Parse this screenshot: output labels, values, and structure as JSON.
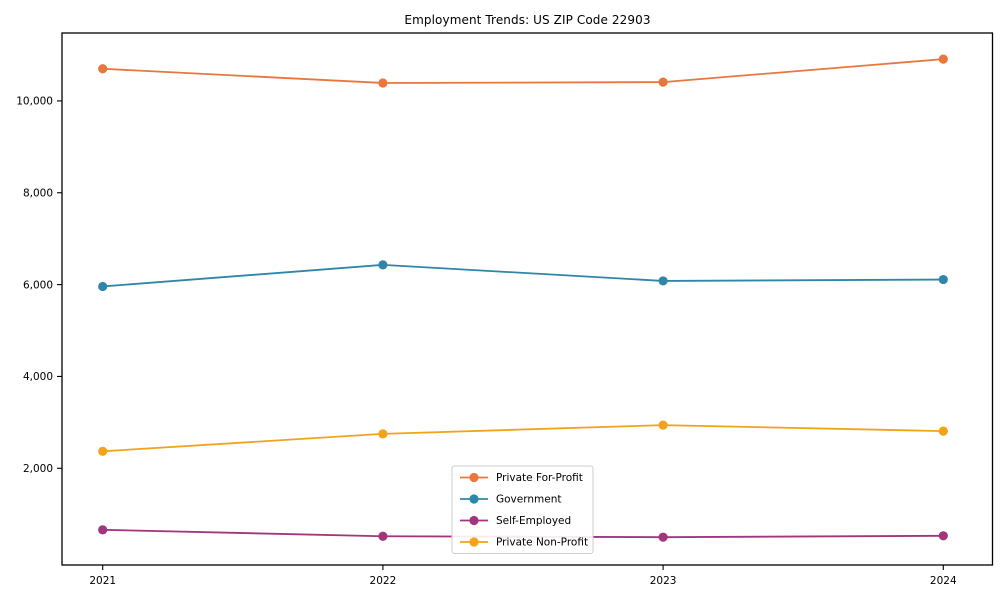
{
  "chart_data": {
    "type": "line",
    "title": "Employment Trends: US ZIP Code 22903",
    "categories": [
      "2021",
      "2022",
      "2023",
      "2024"
    ],
    "series": [
      {
        "name": "Private For-Profit",
        "color": "#e8763d",
        "values": [
          10700,
          10390,
          10410,
          10910
        ]
      },
      {
        "name": "Government",
        "color": "#2e87a8",
        "values": [
          5960,
          6430,
          6080,
          6110
        ]
      },
      {
        "name": "Self-Employed",
        "color": "#a2357c",
        "values": [
          660,
          520,
          500,
          530
        ]
      },
      {
        "name": "Private Non-Profit",
        "color": "#f2a31a",
        "values": [
          2370,
          2750,
          2940,
          2810
        ]
      }
    ],
    "yticks": [
      2000,
      4000,
      6000,
      8000,
      10000
    ],
    "ytick_labels": [
      "2,000",
      "4,000",
      "6,000",
      "8,000",
      "10,000"
    ],
    "ylim": [
      -106,
      11479
    ],
    "xlabel": "",
    "ylabel": "",
    "grid": false,
    "legend_position": "lower center",
    "axis_color": "#000000",
    "legend_border_color": "#cccccc",
    "background_color": "#ffffff"
  }
}
